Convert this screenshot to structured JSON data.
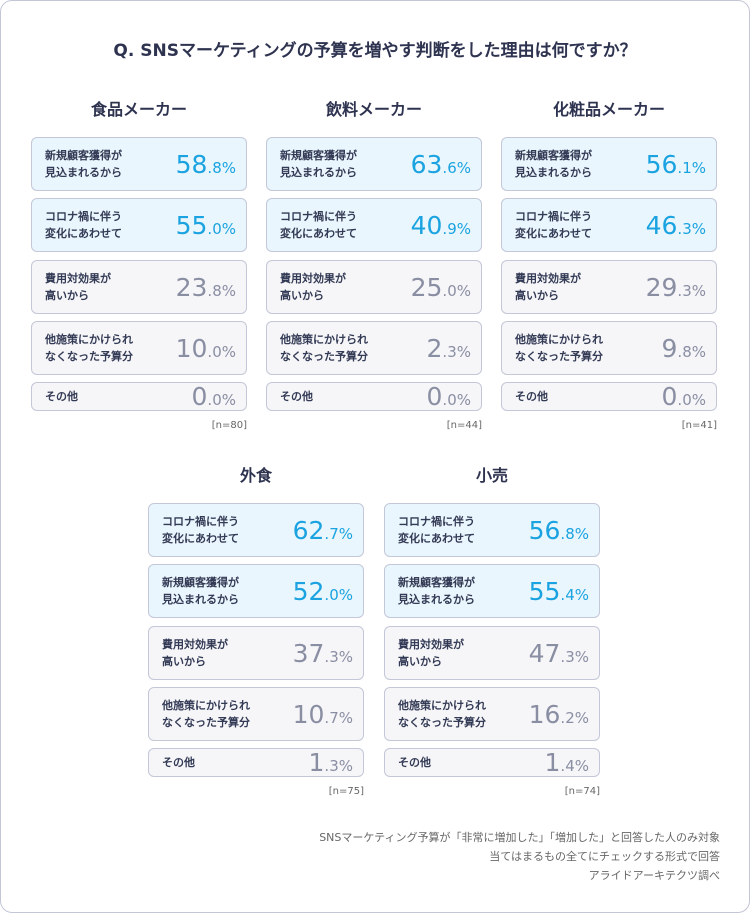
{
  "title": "Q. SNSマーケティングの予算を増やす判断をした理由は何ですか？",
  "groups": [
    {
      "name": "食品メーカー",
      "n": "[n=80]",
      "rows": [
        {
          "label": "新規顧客獲得が\n見込まれるから",
          "int": "58",
          "dec": ".8%",
          "highlight": true
        },
        {
          "label": "コロナ禍に伴う\n変化にあわせて",
          "int": "55",
          "dec": ".0%",
          "highlight": true
        },
        {
          "label": "費用対効果が\n高いから",
          "int": "23",
          "dec": ".8%",
          "highlight": false
        },
        {
          "label": "他施策にかけられ\nなくなった予算分",
          "int": "10",
          "dec": ".0%",
          "highlight": false
        },
        {
          "label": "その他",
          "int": "0",
          "dec": ".0%",
          "highlight": false
        }
      ]
    },
    {
      "name": "飲料メーカー",
      "n": "[n=44]",
      "rows": [
        {
          "label": "新規顧客獲得が\n見込まれるから",
          "int": "63",
          "dec": ".6%",
          "highlight": true
        },
        {
          "label": "コロナ禍に伴う\n変化にあわせて",
          "int": "40",
          "dec": ".9%",
          "highlight": true
        },
        {
          "label": "費用対効果が\n高いから",
          "int": "25",
          "dec": ".0%",
          "highlight": false
        },
        {
          "label": "他施策にかけられ\nなくなった予算分",
          "int": "2",
          "dec": ".3%",
          "highlight": false
        },
        {
          "label": "その他",
          "int": "0",
          "dec": ".0%",
          "highlight": false
        }
      ]
    },
    {
      "name": "化粧品メーカー",
      "n": "[n=41]",
      "rows": [
        {
          "label": "新規顧客獲得が\n見込まれるから",
          "int": "56",
          "dec": ".1%",
          "highlight": true
        },
        {
          "label": "コロナ禍に伴う\n変化にあわせて",
          "int": "46",
          "dec": ".3%",
          "highlight": true
        },
        {
          "label": "費用対効果が\n高いから",
          "int": "29",
          "dec": ".3%",
          "highlight": false
        },
        {
          "label": "他施策にかけられ\nなくなった予算分",
          "int": "9",
          "dec": ".8%",
          "highlight": false
        },
        {
          "label": "その他",
          "int": "0",
          "dec": ".0%",
          "highlight": false
        }
      ]
    },
    {
      "name": "外食",
      "n": "[n=75]",
      "rows": [
        {
          "label": "コロナ禍に伴う\n変化にあわせて",
          "int": "62",
          "dec": ".7%",
          "highlight": true
        },
        {
          "label": "新規顧客獲得が\n見込まれるから",
          "int": "52",
          "dec": ".0%",
          "highlight": true
        },
        {
          "label": "費用対効果が\n高いから",
          "int": "37",
          "dec": ".3%",
          "highlight": false
        },
        {
          "label": "他施策にかけられ\nなくなった予算分",
          "int": "10",
          "dec": ".7%",
          "highlight": false
        },
        {
          "label": "その他",
          "int": "1",
          "dec": ".3%",
          "highlight": false
        }
      ]
    },
    {
      "name": "小売",
      "n": "[n=74]",
      "rows": [
        {
          "label": "コロナ禍に伴う\n変化にあわせて",
          "int": "56",
          "dec": ".8%",
          "highlight": true
        },
        {
          "label": "新規顧客獲得が\n見込まれるから",
          "int": "55",
          "dec": ".4%",
          "highlight": true
        },
        {
          "label": "費用対効果が\n高いから",
          "int": "47",
          "dec": ".3%",
          "highlight": false
        },
        {
          "label": "他施策にかけられ\nなくなった予算分",
          "int": "16",
          "dec": ".2%",
          "highlight": false
        },
        {
          "label": "その他",
          "int": "1",
          "dec": ".4%",
          "highlight": false
        }
      ]
    }
  ],
  "notes": [
    "SNSマーケティング予算が「非常に増加した」「増加した」と回答した人のみ対象",
    "当てはまるもの全てにチェックする形式で回答",
    "アライドアーキテクツ調べ"
  ]
}
